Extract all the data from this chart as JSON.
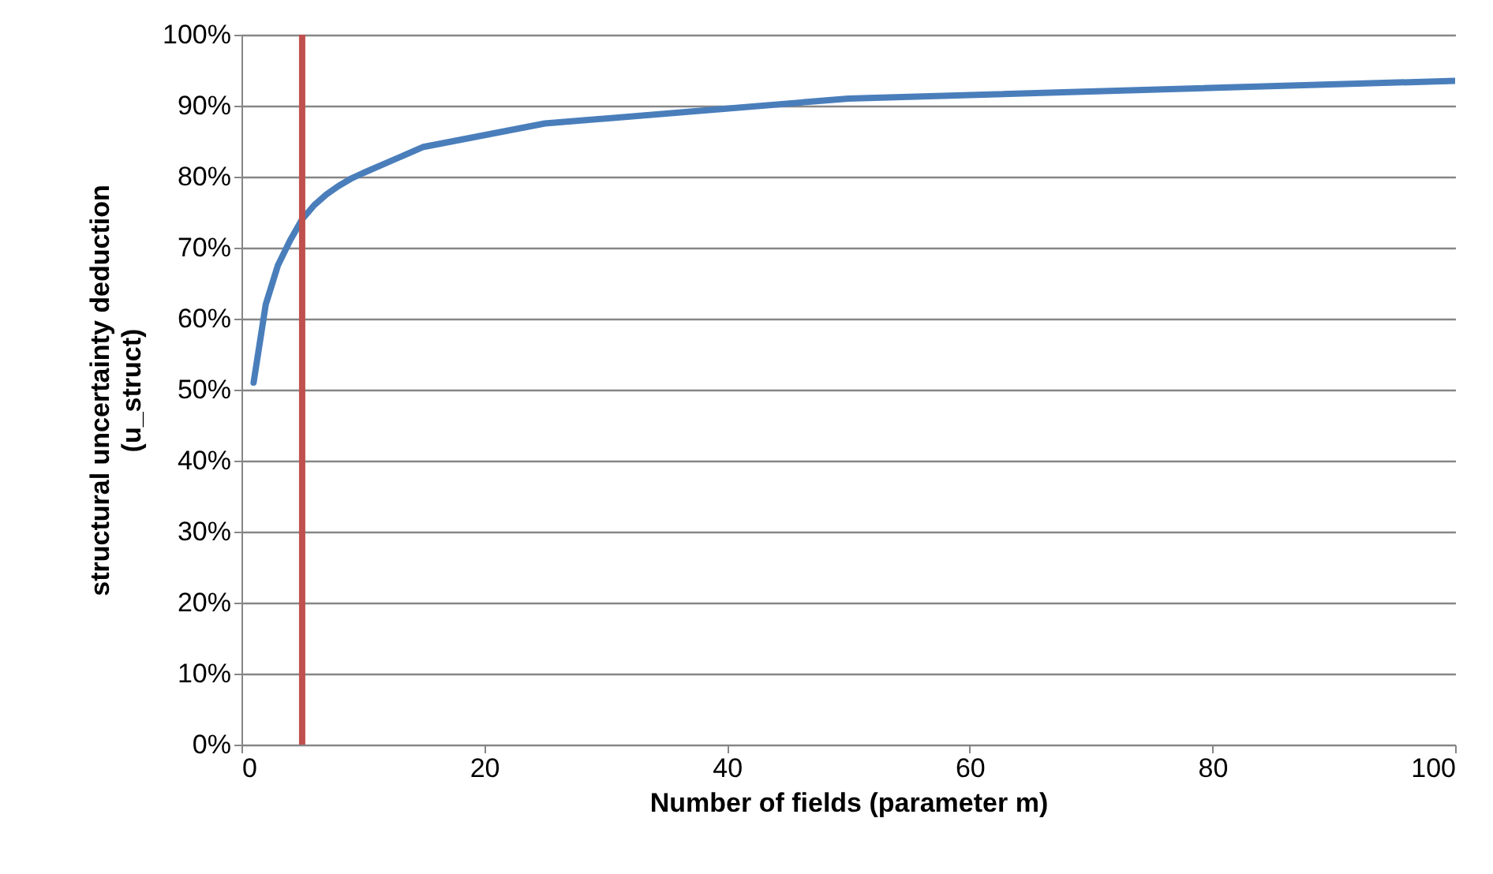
{
  "chart_data": {
    "type": "line",
    "xlabel": "Number of fields (parameter m)",
    "ylabel": "structural uncertainty deduction\n(u_struct)",
    "x": [
      1,
      2,
      3,
      4,
      5,
      6,
      7,
      8,
      9,
      10,
      15,
      25,
      50,
      100
    ],
    "series": [
      {
        "color": "#4a7ebb",
        "values": [
          51,
          62,
          67.5,
          71,
          74,
          76,
          77.5,
          78.7,
          79.7,
          80.5,
          84.2,
          87.5,
          91,
          93.5
        ]
      }
    ],
    "xlim": [
      0,
      100
    ],
    "xticks": [
      0,
      20,
      40,
      60,
      80,
      100
    ],
    "ylim": [
      0,
      100
    ],
    "yticks": [
      {
        "value": 0,
        "label": "0%"
      },
      {
        "value": 10,
        "label": "10%"
      },
      {
        "value": 20,
        "label": "20%"
      },
      {
        "value": 30,
        "label": "30%"
      },
      {
        "value": 40,
        "label": "40%"
      },
      {
        "value": 50,
        "label": "50%"
      },
      {
        "value": 60,
        "label": "60%"
      },
      {
        "value": 70,
        "label": "70%"
      },
      {
        "value": 80,
        "label": "80%"
      },
      {
        "value": 90,
        "label": "90%"
      },
      {
        "value": 100,
        "label": "100%"
      }
    ],
    "ref_lines": [
      {
        "axis": "x",
        "value": 5,
        "color": "#c0504d"
      }
    ],
    "grid": "y",
    "marker": "none",
    "line_style": "solid"
  }
}
